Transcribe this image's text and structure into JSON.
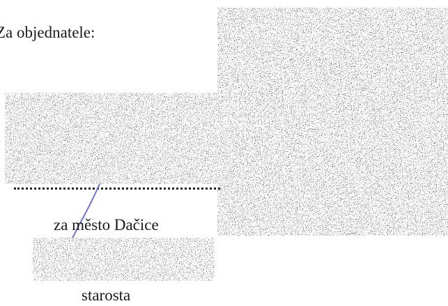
{
  "signature_block": {
    "heading": "Za objednatele:",
    "organization": "za město Dačice",
    "role": "starosta"
  },
  "colors": {
    "text": "#1a1a1a",
    "pen_stroke": "#6f72c8",
    "redaction_dark": "#1c1c1c",
    "redaction_light": "#f2f2f2"
  }
}
